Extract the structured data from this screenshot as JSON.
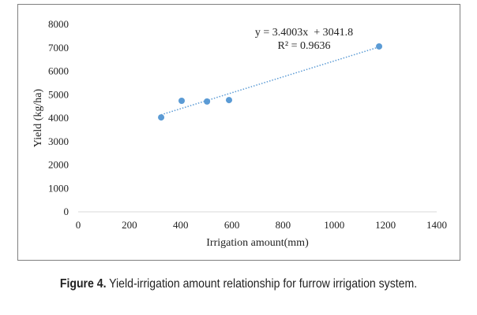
{
  "chart_data": {
    "type": "scatter",
    "title": "",
    "xlabel": "Irrigation amount(mm)",
    "ylabel": "Yield (kg/ha)",
    "xlim": [
      0,
      1400
    ],
    "ylim": [
      0,
      8000
    ],
    "xticks": [
      0,
      200,
      400,
      600,
      800,
      1000,
      1200,
      1400
    ],
    "yticks": [
      0,
      1000,
      2000,
      3000,
      4000,
      5000,
      6000,
      7000,
      8000
    ],
    "grid": false,
    "series": [
      {
        "name": "Yield",
        "color": "#5b9bd5",
        "points": [
          [
            324,
            4030
          ],
          [
            404,
            4740
          ],
          [
            503,
            4710
          ],
          [
            589,
            4770
          ],
          [
            1175,
            7060
          ]
        ]
      }
    ],
    "trendline": {
      "slope": 3.4003,
      "intercept": 3041.8,
      "x_range": [
        324,
        1175
      ],
      "equation": "y = 3.4003x  + 3041.8",
      "r2": "R² = 0.9636"
    }
  },
  "caption": {
    "label": "Figure 4.",
    "text": " Yield-irrigation amount relationship for furrow irrigation system."
  }
}
